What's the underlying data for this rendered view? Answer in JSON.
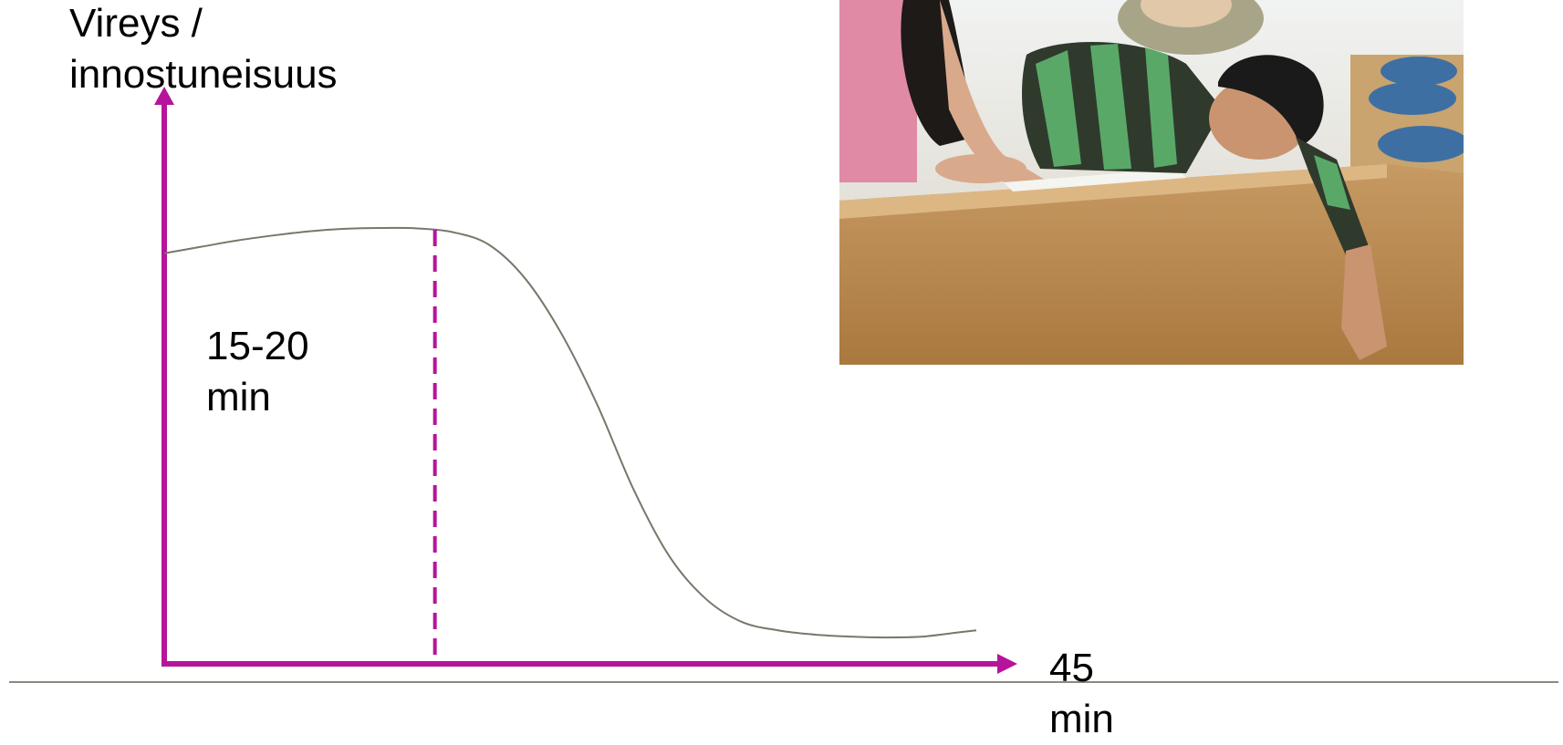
{
  "chart_data": {
    "type": "line",
    "ylabel": "Vireys /\ninnostuneisuus",
    "x_end_label": "45\nmin",
    "annotation": "15-20\nmin",
    "xlim": [
      0,
      45
    ],
    "ylim": [
      0,
      1
    ],
    "series": [
      {
        "x": [
          0,
          2,
          4,
          6,
          8,
          10,
          12,
          14,
          16,
          18,
          20,
          22,
          24,
          26,
          28,
          30,
          32,
          34,
          36,
          38,
          40,
          42,
          44,
          45
        ],
        "values": [
          0.94,
          0.955,
          0.97,
          0.982,
          0.992,
          0.998,
          1.0,
          0.999,
          0.99,
          0.96,
          0.88,
          0.75,
          0.58,
          0.38,
          0.22,
          0.12,
          0.065,
          0.045,
          0.035,
          0.03,
          0.028,
          0.03,
          0.04,
          0.045
        ]
      }
    ],
    "marker_x": 15,
    "colors": {
      "axis": "#b5159a",
      "curve": "#77776b",
      "baseline": "#8a8a80"
    }
  },
  "image": {
    "description_icon": "sleeping-student-photo"
  }
}
